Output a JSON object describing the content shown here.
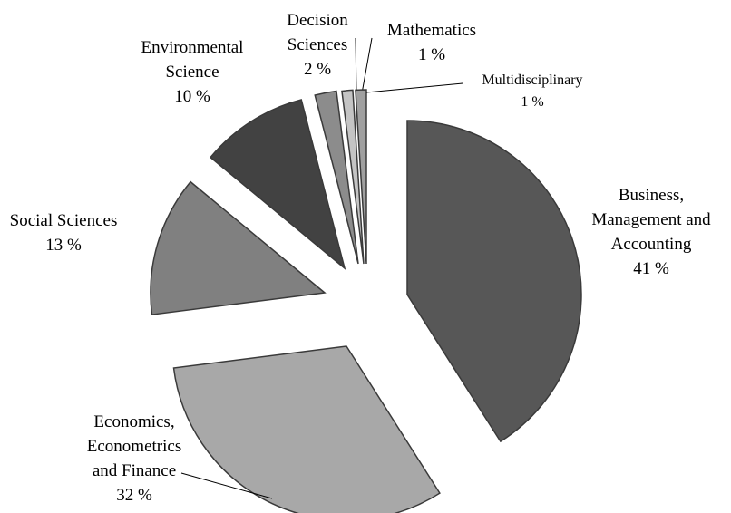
{
  "chart_data": {
    "type": "pie",
    "categories": [
      "Business, Management and Accounting",
      "Economics, Econometrics and Finance",
      "Social Sciences",
      "Environmental Science",
      "Decision Sciences",
      "Mathematics",
      "Multidisciplinary"
    ],
    "values": [
      41,
      32,
      13,
      10,
      2,
      1,
      1
    ],
    "value_labels": [
      "41 %",
      "32 %",
      "13 %",
      "10 %",
      "2 %",
      "1 %",
      "1 %"
    ],
    "colors": [
      "#575757",
      "#a8a8a8",
      "#808080",
      "#424242",
      "#8c8c8c",
      "#c4c4c4",
      "#a0a0a0"
    ]
  }
}
